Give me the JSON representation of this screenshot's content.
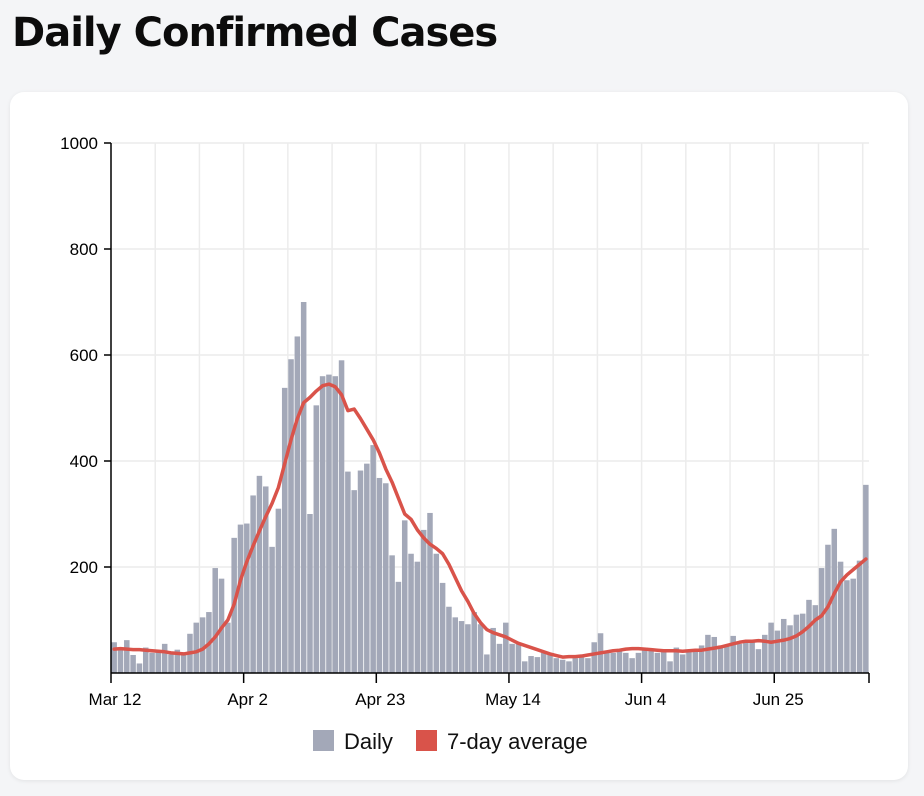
{
  "page": {
    "title": "Daily Confirmed Cases"
  },
  "colors": {
    "bar": "#a3a8b8",
    "average_line": "#d9534a",
    "grid": "#ececec",
    "axis": "#000000",
    "card_background": "#ffffff",
    "page_background": "#f4f5f7"
  },
  "chart_data": {
    "type": "bar",
    "title": "Daily Confirmed Cases",
    "xlabel": "",
    "ylabel": "",
    "ylim": [
      0,
      1000
    ],
    "yticks": [
      200,
      400,
      600,
      800,
      1000
    ],
    "grid": true,
    "legend_position": "bottom-center",
    "x_start": "Mar 12",
    "x_end": "Jul 10",
    "xticks": [
      {
        "label": "Mar 12",
        "day": 0
      },
      {
        "label": "Apr 2",
        "day": 21
      },
      {
        "label": "Apr 23",
        "day": 42
      },
      {
        "label": "May 14",
        "day": 63
      },
      {
        "label": "Jun 4",
        "day": 84
      },
      {
        "label": "Jun 25",
        "day": 105
      }
    ],
    "series": [
      {
        "name": "Daily",
        "type": "bar",
        "values": [
          58,
          48,
          62,
          34,
          18,
          48,
          38,
          40,
          55,
          35,
          44,
          38,
          74,
          95,
          105,
          115,
          198,
          178,
          95,
          255,
          280,
          282,
          335,
          372,
          352,
          238,
          310,
          538,
          592,
          635,
          700,
          300,
          505,
          560,
          563,
          560,
          590,
          380,
          345,
          382,
          395,
          430,
          368,
          358,
          222,
          172,
          288,
          225,
          210,
          270,
          302,
          225,
          170,
          125,
          105,
          98,
          92,
          115,
          92,
          35,
          85,
          55,
          95,
          55,
          55,
          22,
          32,
          30,
          38,
          36,
          28,
          25,
          22,
          28,
          32,
          28,
          58,
          75,
          40,
          38,
          42,
          38,
          28,
          38,
          48,
          45,
          38,
          42,
          22,
          48,
          35,
          42,
          45,
          52,
          72,
          68,
          52,
          50,
          70,
          55,
          62,
          58,
          45,
          72,
          95,
          80,
          102,
          90,
          110,
          112,
          138,
          128,
          198,
          242,
          272,
          210,
          175,
          178,
          212,
          355
        ]
      },
      {
        "name": "7-day average",
        "type": "line",
        "values": [
          45,
          46,
          45,
          44,
          44,
          43,
          42,
          41,
          40,
          38,
          37,
          36,
          38,
          40,
          45,
          55,
          68,
          85,
          100,
          130,
          175,
          210,
          240,
          268,
          295,
          320,
          350,
          395,
          440,
          480,
          510,
          520,
          532,
          542,
          545,
          540,
          525,
          495,
          498,
          480,
          460,
          440,
          415,
          385,
          360,
          330,
          300,
          290,
          270,
          255,
          243,
          235,
          225,
          205,
          180,
          155,
          135,
          112,
          95,
          82,
          76,
          72,
          68,
          62,
          56,
          52,
          48,
          44,
          40,
          36,
          33,
          30,
          31,
          31,
          32,
          34,
          36,
          38,
          40,
          42,
          43,
          45,
          46,
          46,
          45,
          44,
          43,
          42,
          42,
          42,
          41,
          42,
          43,
          43,
          45,
          47,
          49,
          52,
          55,
          58,
          60,
          60,
          61,
          60,
          58,
          60,
          62,
          65,
          70,
          78,
          88,
          100,
          108,
          125,
          150,
          172,
          185,
          195,
          205,
          215
        ]
      }
    ]
  }
}
